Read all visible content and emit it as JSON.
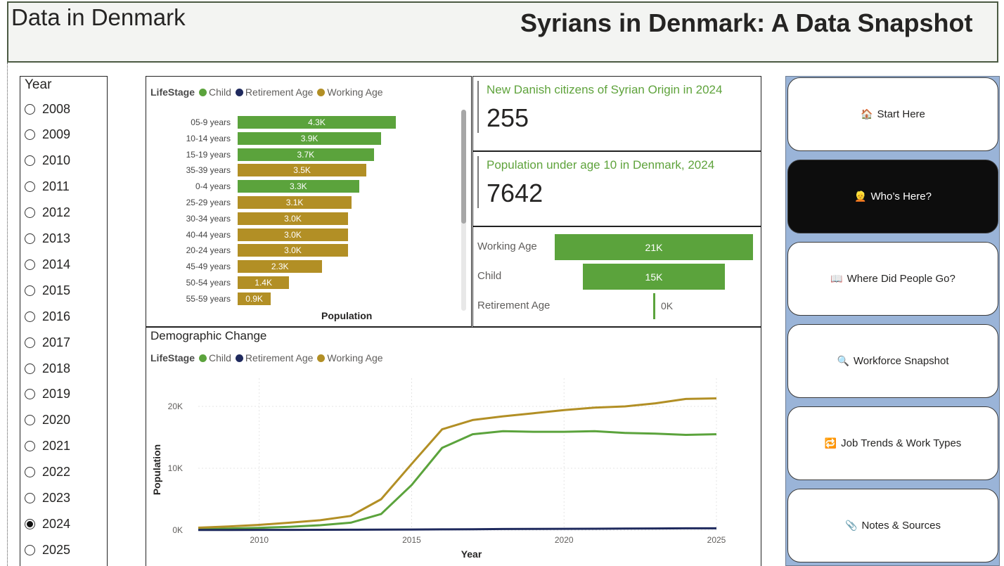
{
  "app_title": "Data in Denmark",
  "page_title": "Syrians in Denmark: A Data Snapshot",
  "year_slicer": {
    "title": "Year",
    "options": [
      "2008",
      "2009",
      "2010",
      "2011",
      "2012",
      "2013",
      "2014",
      "2015",
      "2016",
      "2017",
      "2018",
      "2019",
      "2020",
      "2021",
      "2022",
      "2023",
      "2024",
      "2025"
    ],
    "selected": "2024"
  },
  "colors": {
    "child": "#5ba33c",
    "retirement": "#1f2a5e",
    "working": "#b28f25"
  },
  "legend": {
    "title": "LifeStage",
    "items": [
      "Child",
      "Retirement Age",
      "Working Age"
    ]
  },
  "kpis": [
    {
      "title": "New Danish citizens of Syrian Origin in 2024",
      "value": "255"
    },
    {
      "title": "Population under age 10 in Denmark, 2024",
      "value": "7642"
    }
  ],
  "nav": [
    {
      "label": "Start Here",
      "icon": "house-icon",
      "glyph": "🏠",
      "active": false
    },
    {
      "label": "Who’s Here?",
      "icon": "person-icon",
      "glyph": "👱",
      "active": true
    },
    {
      "label": "Where Did People Go?",
      "icon": "book-icon",
      "glyph": "📖",
      "active": false
    },
    {
      "label": "Workforce Snapshot",
      "icon": "magnifier-icon",
      "glyph": "🔍",
      "active": false
    },
    {
      "label": "Job Trends & Work Types",
      "icon": "repeat-icon",
      "glyph": "🔁",
      "active": false
    },
    {
      "label": "Notes & Sources",
      "icon": "paperclip-icon",
      "glyph": "📎",
      "active": false
    }
  ],
  "chart_data": [
    {
      "type": "bar",
      "orientation": "horizontal",
      "xlabel": "Population",
      "categories": [
        "05-9 years",
        "10-14 years",
        "15-19 years",
        "35-39 years",
        "0-4 years",
        "25-29 years",
        "30-34 years",
        "40-44 years",
        "20-24 years",
        "45-49 years",
        "50-54 years",
        "55-59 years"
      ],
      "values": [
        4300,
        3900,
        3700,
        3500,
        3300,
        3100,
        3000,
        3000,
        3000,
        2300,
        1400,
        900
      ],
      "data_labels": [
        "4.3K",
        "3.9K",
        "3.7K",
        "3.5K",
        "3.3K",
        "3.1K",
        "3.0K",
        "3.0K",
        "3.0K",
        "2.3K",
        "1.4K",
        "0.9K"
      ],
      "lifestage": [
        "Child",
        "Child",
        "Child",
        "Working Age",
        "Child",
        "Working Age",
        "Working Age",
        "Working Age",
        "Working Age",
        "Working Age",
        "Working Age",
        "Working Age"
      ]
    },
    {
      "type": "bar",
      "variant": "funnel",
      "categories": [
        "Working Age",
        "Child",
        "Retirement Age"
      ],
      "values": [
        21000,
        15000,
        0
      ],
      "data_labels": [
        "21K",
        "15K",
        "0K"
      ]
    },
    {
      "type": "line",
      "title": "Demographic Change",
      "xlabel": "Year",
      "ylabel": "Population",
      "xlim": [
        2008,
        2025
      ],
      "ylim": [
        0,
        23000
      ],
      "x_ticks": [
        "2010",
        "2015",
        "2020",
        "2025"
      ],
      "y_ticks": [
        "0K",
        "10K",
        "20K"
      ],
      "x": [
        2008,
        2009,
        2010,
        2011,
        2012,
        2013,
        2014,
        2015,
        2016,
        2017,
        2018,
        2019,
        2020,
        2021,
        2022,
        2023,
        2024,
        2025
      ],
      "series": [
        {
          "name": "Child",
          "values": [
            150,
            250,
            380,
            550,
            800,
            1200,
            2600,
            7300,
            13300,
            15500,
            16000,
            15900,
            15900,
            16000,
            15700,
            15600,
            15400,
            15500
          ]
        },
        {
          "name": "Retirement Age",
          "values": [
            20,
            30,
            40,
            50,
            60,
            70,
            80,
            100,
            120,
            150,
            180,
            200,
            220,
            230,
            250,
            270,
            290,
            300
          ]
        },
        {
          "name": "Working Age",
          "values": [
            400,
            600,
            850,
            1200,
            1600,
            2300,
            5000,
            10700,
            16300,
            17800,
            18400,
            18900,
            19400,
            19800,
            20000,
            20500,
            21200,
            21300
          ]
        }
      ]
    }
  ]
}
